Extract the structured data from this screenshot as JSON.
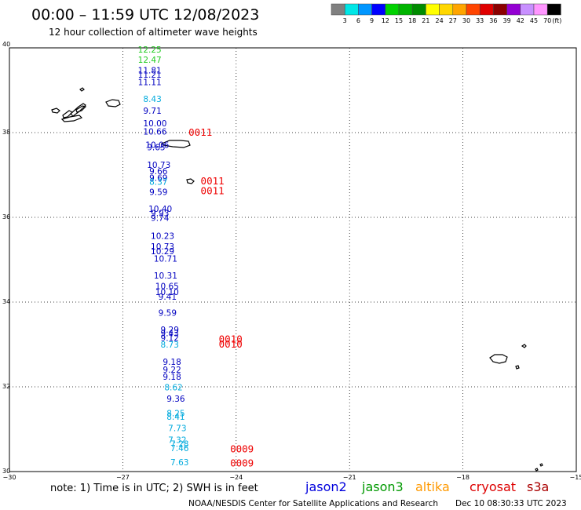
{
  "header": {
    "title": "00:00 – 11:59 UTC 12/08/2023",
    "subtitle": "12 hour collection of altimeter wave heights"
  },
  "colorbar": {
    "labels": [
      "3",
      "6",
      "9",
      "12",
      "15",
      "18",
      "21",
      "24",
      "27",
      "30",
      "33",
      "36",
      "39",
      "42",
      "45",
      "70"
    ],
    "unit": "(ft)",
    "colors": [
      "#808080",
      "#00e6e6",
      "#0096ff",
      "#0000ff",
      "#00d200",
      "#00b400",
      "#008c00",
      "#ffff00",
      "#ffd700",
      "#ffa500",
      "#ff4500",
      "#e00000",
      "#8b0000",
      "#9400d3",
      "#c890ff",
      "#ff96ff",
      "#000000"
    ]
  },
  "footer": {
    "note": "note: 1) Time is in UTC; 2) SWH is in feet",
    "credit": "NOAA/NESDIS Center for Satellite Applications and Research",
    "timestamp": "Dec 10 08:30:33 UTC 2023"
  },
  "legend": [
    {
      "name": "jason2",
      "color": "#0000dd"
    },
    {
      "name": "jason3",
      "color": "#009900"
    },
    {
      "name": "altika",
      "color": "#ff9900"
    },
    {
      "name": "cryosat",
      "color": "#dd0000"
    },
    {
      "name": "s3a",
      "color": "#aa0000"
    }
  ],
  "colors": {
    "jason3": "#22cc22",
    "jason2": "#0000c0",
    "cyan": "#00aadd",
    "red": "#ee0000"
  },
  "chart_data": {
    "type": "scatter",
    "title": "12 hour collection of altimeter wave heights",
    "xlabel": "",
    "ylabel": "",
    "xlim": [
      -30,
      -15
    ],
    "ylim": [
      30,
      40
    ],
    "x_ticks": [
      "−30",
      "−27",
      "−24",
      "−21",
      "−18",
      "−15"
    ],
    "y_ticks": [
      "30",
      "32",
      "34",
      "36",
      "38",
      "40"
    ],
    "grid": true,
    "wave_labels": [
      {
        "text": "12.25",
        "lon": -26.6,
        "lat": 39.89,
        "color": "#22cc22"
      },
      {
        "text": "12.47",
        "lon": -26.6,
        "lat": 39.65,
        "color": "#22cc22"
      },
      {
        "text": "11.81",
        "lon": -26.6,
        "lat": 39.4,
        "color": "#0000c0"
      },
      {
        "text": "11.21",
        "lon": -26.6,
        "lat": 39.3,
        "color": "#0000c0"
      },
      {
        "text": "11.11",
        "lon": -26.6,
        "lat": 39.12,
        "color": "#0000c0"
      },
      {
        "text": "8.43",
        "lon": -26.46,
        "lat": 38.72,
        "color": "#00aadd"
      },
      {
        "text": "9.71",
        "lon": -26.46,
        "lat": 38.44,
        "color": "#0000c0"
      },
      {
        "text": "10.00",
        "lon": -26.46,
        "lat": 38.15,
        "color": "#0000c0"
      },
      {
        "text": "10.66",
        "lon": -26.46,
        "lat": 37.95,
        "color": "#0000c0"
      },
      {
        "text": "10.06",
        "lon": -26.4,
        "lat": 37.64,
        "color": "#0000c0"
      },
      {
        "text": "9.65",
        "lon": -26.36,
        "lat": 37.58,
        "color": "#0000c0"
      },
      {
        "text": "10.73",
        "lon": -26.36,
        "lat": 37.17,
        "color": "#0000c0"
      },
      {
        "text": "9.66",
        "lon": -26.3,
        "lat": 37.02,
        "color": "#0000c0"
      },
      {
        "text": "9.69",
        "lon": -26.3,
        "lat": 36.86,
        "color": "#0000c0"
      },
      {
        "text": "8.37",
        "lon": -26.3,
        "lat": 36.77,
        "color": "#00aadd"
      },
      {
        "text": "9.59",
        "lon": -26.3,
        "lat": 36.53,
        "color": "#0000c0"
      },
      {
        "text": "10.40",
        "lon": -26.32,
        "lat": 36.13,
        "color": "#0000c0"
      },
      {
        "text": "9.93",
        "lon": -26.26,
        "lat": 36.03,
        "color": "#0000c0"
      },
      {
        "text": "9.74",
        "lon": -26.26,
        "lat": 35.92,
        "color": "#0000c0"
      },
      {
        "text": "10.23",
        "lon": -26.26,
        "lat": 35.49,
        "color": "#0000c0"
      },
      {
        "text": "10.73",
        "lon": -26.26,
        "lat": 35.24,
        "color": "#0000c0"
      },
      {
        "text": "10.29",
        "lon": -26.26,
        "lat": 35.13,
        "color": "#0000c0"
      },
      {
        "text": "10.71",
        "lon": -26.18,
        "lat": 34.95,
        "color": "#0000c0"
      },
      {
        "text": "10.31",
        "lon": -26.18,
        "lat": 34.56,
        "color": "#0000c0"
      },
      {
        "text": "10.65",
        "lon": -26.14,
        "lat": 34.31,
        "color": "#0000c0"
      },
      {
        "text": "10.10",
        "lon": -26.14,
        "lat": 34.17,
        "color": "#0000c0"
      },
      {
        "text": "9.41",
        "lon": -26.06,
        "lat": 34.06,
        "color": "#0000c0"
      },
      {
        "text": "9.59",
        "lon": -26.06,
        "lat": 33.68,
        "color": "#0000c0"
      },
      {
        "text": "9.29",
        "lon": -26.0,
        "lat": 33.28,
        "color": "#0000c0"
      },
      {
        "text": "9.43",
        "lon": -26.0,
        "lat": 33.19,
        "color": "#0000c0"
      },
      {
        "text": "9.12",
        "lon": -26.0,
        "lat": 33.08,
        "color": "#0000c0"
      },
      {
        "text": "8.73",
        "lon": -26.0,
        "lat": 32.93,
        "color": "#00aadd"
      },
      {
        "text": "9.18",
        "lon": -25.94,
        "lat": 32.52,
        "color": "#0000c0"
      },
      {
        "text": "9.22",
        "lon": -25.94,
        "lat": 32.33,
        "color": "#0000c0"
      },
      {
        "text": "9.18",
        "lon": -25.94,
        "lat": 32.17,
        "color": "#0000c0"
      },
      {
        "text": "8.62",
        "lon": -25.9,
        "lat": 31.92,
        "color": "#00aadd"
      },
      {
        "text": "9.36",
        "lon": -25.84,
        "lat": 31.65,
        "color": "#0000c0"
      },
      {
        "text": "8.25",
        "lon": -25.84,
        "lat": 31.31,
        "color": "#00aadd"
      },
      {
        "text": "8.41",
        "lon": -25.84,
        "lat": 31.22,
        "color": "#00aadd"
      },
      {
        "text": "7.73",
        "lon": -25.8,
        "lat": 30.95,
        "color": "#00aadd"
      },
      {
        "text": "7.32",
        "lon": -25.8,
        "lat": 30.68,
        "color": "#00aadd"
      },
      {
        "text": "7.28",
        "lon": -25.74,
        "lat": 30.58,
        "color": "#00aadd"
      },
      {
        "text": "7.46",
        "lon": -25.74,
        "lat": 30.48,
        "color": "#00aadd"
      },
      {
        "text": "7.63",
        "lon": -25.74,
        "lat": 30.15,
        "color": "#00aadd"
      }
    ],
    "time_labels": [
      {
        "text": "0011",
        "lon": -25.26,
        "lat": 37.93
      },
      {
        "text": "0011",
        "lon": -24.94,
        "lat": 36.78
      },
      {
        "text": "0011",
        "lon": -24.94,
        "lat": 36.55
      },
      {
        "text": "0010",
        "lon": -24.46,
        "lat": 33.05
      },
      {
        "text": "0010",
        "lon": -24.46,
        "lat": 32.93
      },
      {
        "text": "0009",
        "lon": -24.16,
        "lat": 30.45
      },
      {
        "text": "0009",
        "lon": -24.16,
        "lat": 30.12
      }
    ]
  }
}
